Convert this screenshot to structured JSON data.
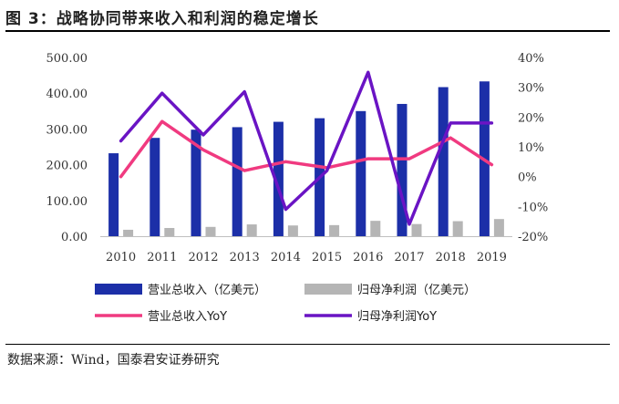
{
  "header": {
    "title": "图 3：战略协同带来收入和利润的稳定增长"
  },
  "footer": {
    "source": "数据来源：Wind，国泰君安证券研究"
  },
  "chart_data": {
    "type": "bar",
    "categories": [
      "2010",
      "2011",
      "2012",
      "2013",
      "2014",
      "2015",
      "2016",
      "2017",
      "2018",
      "2019"
    ],
    "left_axis": {
      "ylim": [
        0,
        500
      ],
      "ticks": [
        "0.00",
        "100.00",
        "200.00",
        "300.00",
        "400.00",
        "500.00"
      ]
    },
    "right_axis": {
      "ylim": [
        -20,
        40
      ],
      "ticks": [
        "-20%",
        "-10%",
        "0%",
        "10%",
        "20%",
        "30%",
        "40%"
      ]
    },
    "grid": false,
    "legend_position": "bottom",
    "series": [
      {
        "name": "营业总收入（亿美元）",
        "type": "bar",
        "axis": "left",
        "color": "#1c2fa8",
        "values": [
          232,
          275,
          298,
          305,
          320,
          330,
          350,
          370,
          417,
          433
        ]
      },
      {
        "name": "归母净利润（亿美元）",
        "type": "bar",
        "axis": "left",
        "color": "#b5b5b5",
        "values": [
          18,
          23,
          26,
          33,
          30,
          31,
          43,
          34,
          42,
          48
        ]
      },
      {
        "name": "营业总收入YoY",
        "type": "line",
        "axis": "right",
        "color": "#f03a80",
        "values": [
          0,
          18.5,
          9,
          2,
          5,
          3,
          6,
          6,
          13,
          4
        ]
      },
      {
        "name": "归母净利润YoY",
        "type": "line",
        "axis": "right",
        "color": "#6a14c4",
        "values": [
          12,
          28,
          14,
          28.5,
          -11,
          2,
          35,
          -16,
          18,
          18
        ]
      }
    ]
  }
}
